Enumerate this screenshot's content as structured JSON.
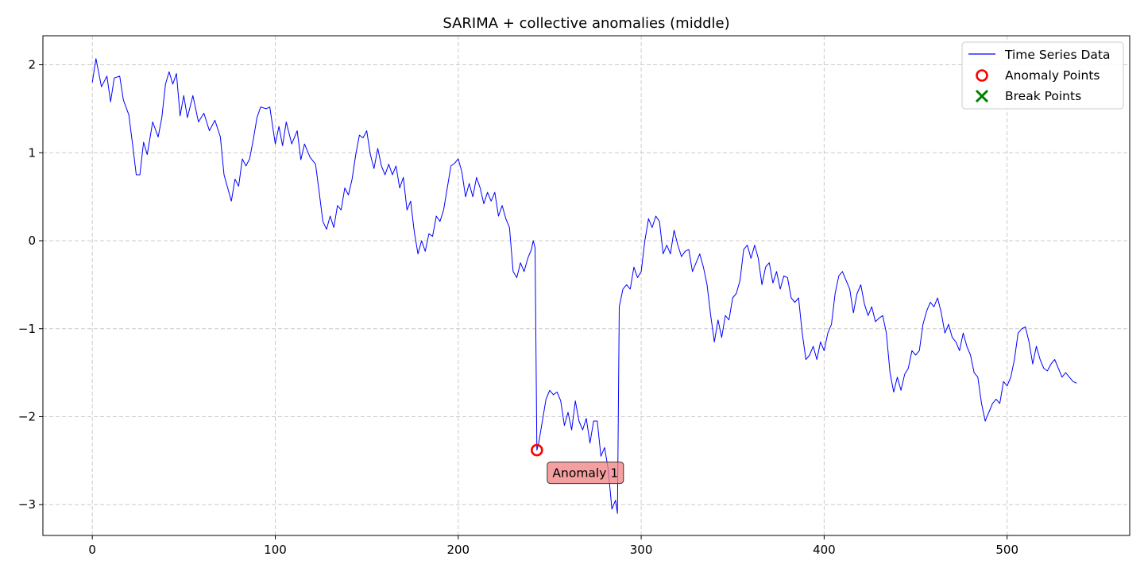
{
  "chart_data": {
    "type": "line",
    "title": "SARIMA + collective anomalies (middle)",
    "xlabel": "",
    "ylabel": "",
    "xlim": [
      -27,
      567
    ],
    "ylim": [
      -3.35,
      2.33
    ],
    "xticks": [
      0,
      100,
      200,
      300,
      400,
      500
    ],
    "yticks": [
      -3,
      -2,
      -1,
      0,
      1,
      2
    ],
    "grid": true,
    "legend_position": "upper-right",
    "colors": {
      "series": "#0000ff",
      "anomaly": "#ff0000",
      "break": "#008000",
      "annotation_fill": "#f08080",
      "grid": "#cccccc"
    },
    "series": [
      {
        "name": "Time Series Data",
        "keypoints": [
          [
            0,
            1.8
          ],
          [
            2,
            2.07
          ],
          [
            5,
            1.75
          ],
          [
            8,
            1.87
          ],
          [
            10,
            1.58
          ],
          [
            12,
            1.85
          ],
          [
            15,
            1.87
          ],
          [
            17,
            1.6
          ],
          [
            20,
            1.43
          ],
          [
            22,
            1.1
          ],
          [
            24,
            0.75
          ],
          [
            26,
            0.75
          ],
          [
            28,
            1.12
          ],
          [
            30,
            0.98
          ],
          [
            33,
            1.35
          ],
          [
            36,
            1.18
          ],
          [
            38,
            1.4
          ],
          [
            40,
            1.78
          ],
          [
            42,
            1.92
          ],
          [
            44,
            1.78
          ],
          [
            46,
            1.9
          ],
          [
            48,
            1.42
          ],
          [
            50,
            1.65
          ],
          [
            52,
            1.4
          ],
          [
            55,
            1.65
          ],
          [
            58,
            1.35
          ],
          [
            61,
            1.45
          ],
          [
            64,
            1.25
          ],
          [
            67,
            1.37
          ],
          [
            70,
            1.18
          ],
          [
            72,
            0.75
          ],
          [
            74,
            0.6
          ],
          [
            76,
            0.45
          ],
          [
            78,
            0.7
          ],
          [
            80,
            0.62
          ],
          [
            82,
            0.93
          ],
          [
            84,
            0.85
          ],
          [
            86,
            0.93
          ],
          [
            88,
            1.15
          ],
          [
            90,
            1.4
          ],
          [
            92,
            1.52
          ],
          [
            95,
            1.5
          ],
          [
            97,
            1.52
          ],
          [
            100,
            1.1
          ],
          [
            102,
            1.3
          ],
          [
            104,
            1.08
          ],
          [
            106,
            1.35
          ],
          [
            109,
            1.1
          ],
          [
            112,
            1.25
          ],
          [
            114,
            0.92
          ],
          [
            116,
            1.1
          ],
          [
            119,
            0.95
          ],
          [
            122,
            0.87
          ],
          [
            124,
            0.55
          ],
          [
            126,
            0.22
          ],
          [
            128,
            0.13
          ],
          [
            130,
            0.28
          ],
          [
            132,
            0.15
          ],
          [
            134,
            0.4
          ],
          [
            136,
            0.35
          ],
          [
            138,
            0.6
          ],
          [
            140,
            0.52
          ],
          [
            142,
            0.7
          ],
          [
            144,
            0.98
          ],
          [
            146,
            1.2
          ],
          [
            148,
            1.17
          ],
          [
            150,
            1.25
          ],
          [
            152,
            0.98
          ],
          [
            154,
            0.82
          ],
          [
            156,
            1.05
          ],
          [
            158,
            0.85
          ],
          [
            160,
            0.75
          ],
          [
            162,
            0.87
          ],
          [
            164,
            0.75
          ],
          [
            166,
            0.85
          ],
          [
            168,
            0.6
          ],
          [
            170,
            0.72
          ],
          [
            172,
            0.35
          ],
          [
            174,
            0.45
          ],
          [
            176,
            0.1
          ],
          [
            178,
            -0.15
          ],
          [
            180,
            0.0
          ],
          [
            182,
            -0.12
          ],
          [
            184,
            0.08
          ],
          [
            186,
            0.05
          ],
          [
            188,
            0.28
          ],
          [
            190,
            0.22
          ],
          [
            192,
            0.35
          ],
          [
            194,
            0.6
          ],
          [
            196,
            0.85
          ],
          [
            198,
            0.88
          ],
          [
            200,
            0.93
          ],
          [
            202,
            0.78
          ],
          [
            204,
            0.5
          ],
          [
            206,
            0.65
          ],
          [
            208,
            0.5
          ],
          [
            210,
            0.72
          ],
          [
            212,
            0.6
          ],
          [
            214,
            0.42
          ],
          [
            216,
            0.55
          ],
          [
            218,
            0.45
          ],
          [
            220,
            0.55
          ],
          [
            222,
            0.28
          ],
          [
            224,
            0.4
          ],
          [
            226,
            0.25
          ],
          [
            228,
            0.15
          ],
          [
            230,
            -0.35
          ],
          [
            232,
            -0.42
          ],
          [
            234,
            -0.25
          ],
          [
            236,
            -0.35
          ],
          [
            238,
            -0.2
          ],
          [
            240,
            -0.1
          ],
          [
            241,
            0.0
          ],
          [
            242,
            -0.08
          ],
          [
            243,
            -2.38
          ],
          [
            244,
            -2.3
          ],
          [
            246,
            -2.05
          ],
          [
            248,
            -1.8
          ],
          [
            250,
            -1.7
          ],
          [
            252,
            -1.75
          ],
          [
            254,
            -1.72
          ],
          [
            256,
            -1.82
          ],
          [
            258,
            -2.1
          ],
          [
            260,
            -1.95
          ],
          [
            262,
            -2.15
          ],
          [
            264,
            -1.82
          ],
          [
            266,
            -2.05
          ],
          [
            268,
            -2.15
          ],
          [
            270,
            -2.02
          ],
          [
            272,
            -2.3
          ],
          [
            274,
            -2.05
          ],
          [
            276,
            -2.05
          ],
          [
            278,
            -2.45
          ],
          [
            280,
            -2.35
          ],
          [
            282,
            -2.6
          ],
          [
            284,
            -3.05
          ],
          [
            286,
            -2.95
          ],
          [
            287,
            -3.1
          ],
          [
            288,
            -0.75
          ],
          [
            290,
            -0.55
          ],
          [
            292,
            -0.5
          ],
          [
            294,
            -0.55
          ],
          [
            296,
            -0.3
          ],
          [
            298,
            -0.42
          ],
          [
            300,
            -0.35
          ],
          [
            302,
            0.0
          ],
          [
            304,
            0.25
          ],
          [
            306,
            0.15
          ],
          [
            308,
            0.28
          ],
          [
            310,
            0.22
          ],
          [
            312,
            -0.15
          ],
          [
            314,
            -0.05
          ],
          [
            316,
            -0.15
          ],
          [
            318,
            0.12
          ],
          [
            320,
            -0.05
          ],
          [
            322,
            -0.18
          ],
          [
            324,
            -0.12
          ],
          [
            326,
            -0.1
          ],
          [
            328,
            -0.35
          ],
          [
            330,
            -0.25
          ],
          [
            332,
            -0.15
          ],
          [
            334,
            -0.3
          ],
          [
            336,
            -0.5
          ],
          [
            338,
            -0.85
          ],
          [
            340,
            -1.15
          ],
          [
            342,
            -0.9
          ],
          [
            344,
            -1.1
          ],
          [
            346,
            -0.85
          ],
          [
            348,
            -0.9
          ],
          [
            350,
            -0.65
          ],
          [
            352,
            -0.6
          ],
          [
            354,
            -0.45
          ],
          [
            356,
            -0.1
          ],
          [
            358,
            -0.05
          ],
          [
            360,
            -0.2
          ],
          [
            362,
            -0.05
          ],
          [
            364,
            -0.2
          ],
          [
            366,
            -0.5
          ],
          [
            368,
            -0.3
          ],
          [
            370,
            -0.25
          ],
          [
            372,
            -0.48
          ],
          [
            374,
            -0.35
          ],
          [
            376,
            -0.55
          ],
          [
            378,
            -0.4
          ],
          [
            380,
            -0.42
          ],
          [
            382,
            -0.65
          ],
          [
            384,
            -0.7
          ],
          [
            386,
            -0.65
          ],
          [
            388,
            -1.05
          ],
          [
            390,
            -1.35
          ],
          [
            392,
            -1.3
          ],
          [
            394,
            -1.2
          ],
          [
            396,
            -1.35
          ],
          [
            398,
            -1.15
          ],
          [
            400,
            -1.25
          ],
          [
            402,
            -1.05
          ],
          [
            404,
            -0.95
          ],
          [
            406,
            -0.6
          ],
          [
            408,
            -0.4
          ],
          [
            410,
            -0.35
          ],
          [
            412,
            -0.45
          ],
          [
            414,
            -0.55
          ],
          [
            416,
            -0.82
          ],
          [
            418,
            -0.6
          ],
          [
            420,
            -0.5
          ],
          [
            422,
            -0.72
          ],
          [
            424,
            -0.85
          ],
          [
            426,
            -0.75
          ],
          [
            428,
            -0.92
          ],
          [
            430,
            -0.88
          ],
          [
            432,
            -0.85
          ],
          [
            434,
            -1.05
          ],
          [
            436,
            -1.5
          ],
          [
            438,
            -1.72
          ],
          [
            440,
            -1.55
          ],
          [
            442,
            -1.7
          ],
          [
            444,
            -1.52
          ],
          [
            446,
            -1.45
          ],
          [
            448,
            -1.25
          ],
          [
            450,
            -1.3
          ],
          [
            452,
            -1.25
          ],
          [
            454,
            -0.95
          ],
          [
            456,
            -0.8
          ],
          [
            458,
            -0.7
          ],
          [
            460,
            -0.75
          ],
          [
            462,
            -0.65
          ],
          [
            464,
            -0.82
          ],
          [
            466,
            -1.05
          ],
          [
            468,
            -0.95
          ],
          [
            470,
            -1.1
          ],
          [
            472,
            -1.15
          ],
          [
            474,
            -1.25
          ],
          [
            476,
            -1.05
          ],
          [
            478,
            -1.2
          ],
          [
            480,
            -1.3
          ],
          [
            482,
            -1.5
          ],
          [
            484,
            -1.55
          ],
          [
            486,
            -1.85
          ],
          [
            488,
            -2.05
          ],
          [
            490,
            -1.95
          ],
          [
            492,
            -1.85
          ],
          [
            494,
            -1.8
          ],
          [
            496,
            -1.85
          ],
          [
            498,
            -1.6
          ],
          [
            500,
            -1.65
          ],
          [
            502,
            -1.55
          ],
          [
            504,
            -1.35
          ],
          [
            506,
            -1.05
          ],
          [
            508,
            -1.0
          ],
          [
            510,
            -0.98
          ],
          [
            512,
            -1.15
          ],
          [
            514,
            -1.4
          ],
          [
            516,
            -1.2
          ],
          [
            518,
            -1.35
          ],
          [
            520,
            -1.45
          ],
          [
            522,
            -1.48
          ],
          [
            524,
            -1.4
          ],
          [
            526,
            -1.35
          ],
          [
            528,
            -1.45
          ],
          [
            530,
            -1.55
          ],
          [
            532,
            -1.5
          ],
          [
            534,
            -1.55
          ],
          [
            536,
            -1.6
          ],
          [
            538,
            -1.62
          ]
        ]
      }
    ],
    "anomaly_points": [
      [
        243,
        -2.38
      ]
    ],
    "break_points": [],
    "annotations": [
      {
        "text": "Anomaly 1",
        "x": 243,
        "y": -2.38
      }
    ],
    "legend": [
      {
        "label": "Time Series Data",
        "marker": "line"
      },
      {
        "label": "Anomaly Points",
        "marker": "circle"
      },
      {
        "label": "Break Points",
        "marker": "x"
      }
    ]
  }
}
